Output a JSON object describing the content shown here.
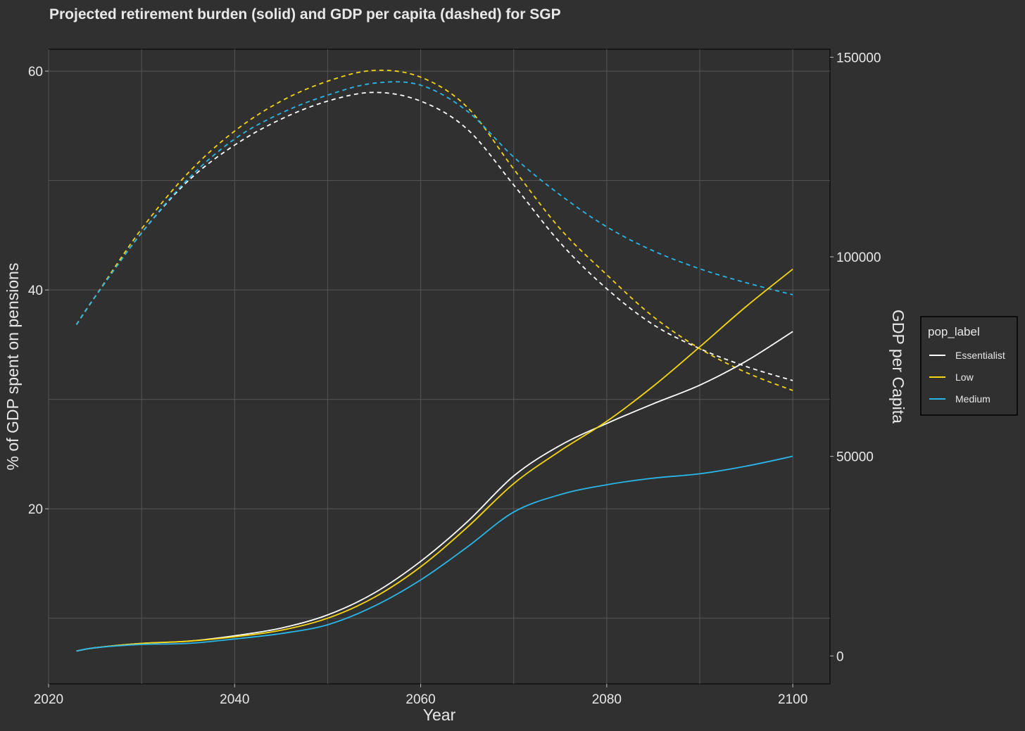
{
  "chart_data": {
    "type": "line",
    "title": "Projected retirement burden (solid) and GDP per capita (dashed) for SGP",
    "xlabel": "Year",
    "ylabel_left": "% of GDP spent on pensions",
    "ylabel_right": "GDP per Capita",
    "xlim": [
      2020,
      2104
    ],
    "ylim_left": [
      4,
      62
    ],
    "ylim_right": [
      -7000,
      152000
    ],
    "x_ticks": [
      2020,
      2040,
      2060,
      2080,
      2100
    ],
    "x_tick_labels": [
      "2020",
      "2040",
      "2060",
      "2080",
      "2100"
    ],
    "y_left_ticks": [
      20,
      40,
      60
    ],
    "y_left_tick_labels": [
      "20",
      "40",
      "60"
    ],
    "y_right_ticks": [
      0,
      50000,
      100000,
      150000
    ],
    "y_right_tick_labels": [
      "0",
      "50000",
      "100000",
      "150000"
    ],
    "legend": {
      "title": "pop_label",
      "placement": "right",
      "entries": [
        "Essentialist",
        "Low",
        "Medium"
      ]
    },
    "x": [
      2023,
      2025,
      2030,
      2035,
      2040,
      2045,
      2050,
      2055,
      2060,
      2065,
      2070,
      2075,
      2080,
      2085,
      2090,
      2095,
      2100
    ],
    "series": [
      {
        "name": "Essentialist",
        "color": "#ffffff",
        "pension_pct": [
          7.0,
          7.3,
          7.7,
          7.9,
          8.4,
          9.1,
          10.3,
          12.3,
          15.2,
          18.8,
          23.0,
          25.8,
          27.8,
          29.6,
          31.3,
          33.5,
          36.2
        ],
        "gdp_per_capita": [
          83000,
          90000,
          106000,
          119000,
          128000,
          134500,
          139000,
          141200,
          139000,
          132000,
          118000,
          103500,
          92000,
          83000,
          77000,
          72500,
          69000
        ]
      },
      {
        "name": "Low",
        "color": "#f5d60f",
        "pension_pct": [
          7.0,
          7.3,
          7.7,
          7.9,
          8.3,
          8.9,
          10.0,
          11.9,
          14.7,
          18.3,
          22.3,
          25.3,
          28.0,
          31.2,
          34.8,
          38.5,
          41.9
        ],
        "gdp_per_capita": [
          83000,
          90000,
          107000,
          121000,
          131500,
          139000,
          144000,
          146700,
          145000,
          137500,
          122000,
          107000,
          95500,
          85000,
          77000,
          71000,
          66500
        ]
      },
      {
        "name": "Medium",
        "color": "#29b6e8",
        "pension_pct": [
          7.0,
          7.3,
          7.6,
          7.7,
          8.1,
          8.6,
          9.4,
          11.1,
          13.5,
          16.5,
          19.7,
          21.3,
          22.2,
          22.8,
          23.2,
          23.9,
          24.8
        ],
        "gdp_per_capita": [
          83000,
          90000,
          106000,
          119500,
          129500,
          136000,
          140500,
          143500,
          143000,
          136500,
          125000,
          115500,
          107500,
          101500,
          97000,
          93500,
          90500
        ]
      }
    ]
  }
}
